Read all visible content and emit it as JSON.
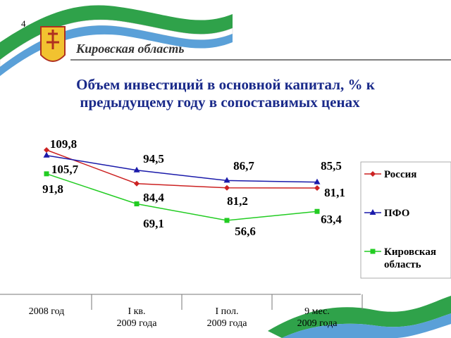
{
  "page_number": "4",
  "header": "Кировская область",
  "chart_data": {
    "type": "line",
    "title": "Объем инвестиций в основной капитал, % к предыдущему году в сопоставимых ценах",
    "categories": [
      "2008 год",
      "I кв.\n2009 года",
      "I пол.\n2009 года",
      "9 мес.\n2009 года"
    ],
    "series": [
      {
        "name": "Россия",
        "color": "#cc2222",
        "marker": "diamond",
        "values": [
          109.8,
          84.4,
          81.2,
          81.1
        ],
        "value_labels": [
          "109,8",
          "84,4",
          "81,2",
          "81,1"
        ]
      },
      {
        "name": "ПФО",
        "color": "#1a1aaa",
        "marker": "triangle",
        "values": [
          105.7,
          94.5,
          86.7,
          85.5
        ],
        "value_labels": [
          "105,7",
          "94,5",
          "86,7",
          "85,5"
        ]
      },
      {
        "name": "Кировская\nобласть",
        "color": "#22cc22",
        "marker": "square",
        "values": [
          91.8,
          69.1,
          56.6,
          63.4
        ],
        "value_labels": [
          "91,8",
          "69,1",
          "56,6",
          "63,4"
        ]
      }
    ]
  }
}
